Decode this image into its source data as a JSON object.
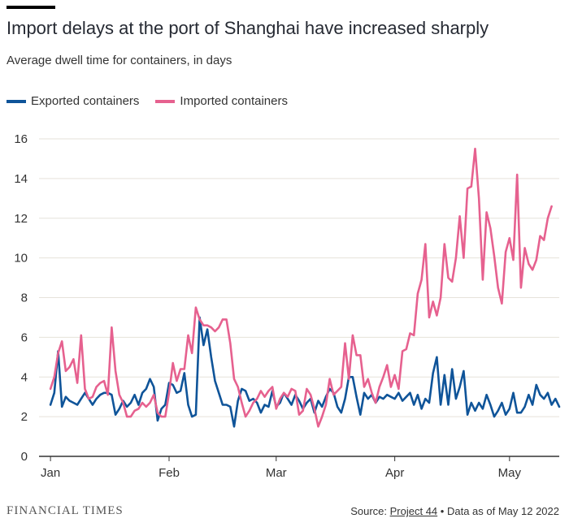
{
  "header": {
    "title": "Import delays at the port of Shanghai have increased sharply",
    "subtitle": "Average dwell time for containers, in days"
  },
  "footer": {
    "brand": "FINANCIAL TIMES",
    "source_prefix": "Source:",
    "source_link": "Project 44",
    "source_suffix": "• Data as of May 12 2022"
  },
  "colors": {
    "exported": "#0f5499",
    "imported": "#e6618f",
    "grid": "#e6e2da",
    "axis": "#333333"
  },
  "chart_data": {
    "type": "line",
    "title": "Import delays at the port of Shanghai have increased sharply",
    "subtitle": "Average dwell time for containers, in days",
    "xlabel": "",
    "ylabel": "",
    "x_ticks": [
      {
        "label": "Jan",
        "day": 0
      },
      {
        "label": "Feb",
        "day": 31
      },
      {
        "label": "Mar",
        "day": 59
      },
      {
        "label": "Apr",
        "day": 90
      },
      {
        "label": "May",
        "day": 120
      }
    ],
    "y_ticks": [
      0,
      2,
      4,
      6,
      8,
      10,
      12,
      14,
      16
    ],
    "ylim": [
      0,
      16
    ],
    "xlim_days": [
      -3,
      133
    ],
    "grid": true,
    "legend_position": "top-left",
    "series": [
      {
        "name": "Exported containers",
        "color": "#0f5499",
        "values": [
          [
            0,
            2.6
          ],
          [
            1,
            3.2
          ],
          [
            2,
            5.3
          ],
          [
            3,
            2.5
          ],
          [
            4,
            3.0
          ],
          [
            5,
            2.8
          ],
          [
            6,
            2.7
          ],
          [
            7,
            2.6
          ],
          [
            8,
            2.9
          ],
          [
            9,
            3.2
          ],
          [
            10,
            2.9
          ],
          [
            11,
            2.6
          ],
          [
            12,
            2.9
          ],
          [
            13,
            3.1
          ],
          [
            14,
            3.2
          ],
          [
            15,
            3.2
          ],
          [
            16,
            3.1
          ],
          [
            17,
            2.1
          ],
          [
            18,
            2.4
          ],
          [
            19,
            2.8
          ],
          [
            20,
            2.5
          ],
          [
            21,
            2.7
          ],
          [
            22,
            3.1
          ],
          [
            23,
            2.6
          ],
          [
            24,
            3.2
          ],
          [
            25,
            3.4
          ],
          [
            26,
            3.9
          ],
          [
            27,
            3.5
          ],
          [
            28,
            1.8
          ],
          [
            29,
            2.4
          ],
          [
            30,
            2.6
          ],
          [
            31,
            3.7
          ],
          [
            32,
            3.6
          ],
          [
            33,
            3.2
          ],
          [
            34,
            3.3
          ],
          [
            35,
            4.2
          ],
          [
            36,
            2.6
          ],
          [
            37,
            2.0
          ],
          [
            38,
            2.1
          ],
          [
            39,
            7.0
          ],
          [
            40,
            5.6
          ],
          [
            41,
            6.4
          ],
          [
            42,
            5.0
          ],
          [
            43,
            3.8
          ],
          [
            44,
            3.2
          ],
          [
            45,
            2.6
          ],
          [
            46,
            2.6
          ],
          [
            47,
            2.5
          ],
          [
            48,
            1.5
          ],
          [
            49,
            2.8
          ],
          [
            50,
            3.4
          ],
          [
            51,
            3.3
          ],
          [
            52,
            2.8
          ],
          [
            53,
            2.9
          ],
          [
            54,
            2.7
          ],
          [
            55,
            2.2
          ],
          [
            56,
            2.6
          ],
          [
            57,
            2.5
          ],
          [
            58,
            3.3
          ],
          [
            59,
            2.5
          ],
          [
            60,
            2.7
          ],
          [
            61,
            3.2
          ],
          [
            62,
            2.9
          ],
          [
            63,
            2.6
          ],
          [
            64,
            3.1
          ],
          [
            65,
            2.8
          ],
          [
            66,
            2.4
          ],
          [
            67,
            2.7
          ],
          [
            68,
            2.9
          ],
          [
            69,
            2.2
          ],
          [
            70,
            2.8
          ],
          [
            71,
            2.5
          ],
          [
            72,
            3.0
          ],
          [
            73,
            3.4
          ],
          [
            74,
            3.2
          ],
          [
            75,
            2.5
          ],
          [
            76,
            2.2
          ],
          [
            77,
            2.9
          ],
          [
            78,
            4.0
          ],
          [
            79,
            4.0
          ],
          [
            80,
            3.0
          ],
          [
            81,
            2.1
          ],
          [
            82,
            3.2
          ],
          [
            83,
            2.9
          ],
          [
            84,
            3.1
          ],
          [
            85,
            2.7
          ],
          [
            86,
            3.0
          ],
          [
            87,
            2.9
          ],
          [
            88,
            3.1
          ],
          [
            89,
            3.0
          ],
          [
            90,
            2.9
          ],
          [
            91,
            3.2
          ],
          [
            92,
            2.8
          ],
          [
            93,
            3.0
          ],
          [
            94,
            3.2
          ],
          [
            95,
            2.6
          ],
          [
            96,
            3.1
          ],
          [
            97,
            2.4
          ],
          [
            98,
            2.9
          ],
          [
            99,
            2.7
          ],
          [
            100,
            4.2
          ],
          [
            101,
            5.0
          ],
          [
            102,
            2.6
          ],
          [
            103,
            4.1
          ],
          [
            104,
            2.6
          ],
          [
            105,
            4.4
          ],
          [
            106,
            2.9
          ],
          [
            107,
            3.5
          ],
          [
            108,
            4.3
          ],
          [
            109,
            2.1
          ],
          [
            110,
            2.7
          ],
          [
            111,
            2.3
          ],
          [
            112,
            2.7
          ],
          [
            113,
            2.4
          ],
          [
            114,
            3.1
          ],
          [
            115,
            2.6
          ],
          [
            116,
            2.0
          ],
          [
            117,
            2.3
          ],
          [
            118,
            2.7
          ],
          [
            119,
            2.1
          ],
          [
            120,
            2.4
          ],
          [
            121,
            3.2
          ],
          [
            122,
            2.2
          ],
          [
            123,
            2.2
          ],
          [
            124,
            2.5
          ],
          [
            125,
            3.1
          ],
          [
            126,
            2.6
          ],
          [
            127,
            3.6
          ],
          [
            128,
            3.1
          ],
          [
            129,
            2.9
          ],
          [
            130,
            3.2
          ],
          [
            131,
            2.6
          ],
          [
            132,
            2.9
          ],
          [
            133,
            2.5
          ]
        ]
      },
      {
        "name": "Imported containers",
        "color": "#e6618f",
        "values": [
          [
            0,
            3.4
          ],
          [
            1,
            4.0
          ],
          [
            2,
            5.2
          ],
          [
            3,
            5.8
          ],
          [
            4,
            4.3
          ],
          [
            5,
            4.5
          ],
          [
            6,
            4.9
          ],
          [
            7,
            3.7
          ],
          [
            8,
            6.1
          ],
          [
            9,
            3.4
          ],
          [
            10,
            2.9
          ],
          [
            11,
            3.0
          ],
          [
            12,
            3.5
          ],
          [
            13,
            3.7
          ],
          [
            14,
            3.8
          ],
          [
            15,
            3.1
          ],
          [
            16,
            6.5
          ],
          [
            17,
            4.3
          ],
          [
            18,
            3.1
          ],
          [
            19,
            2.7
          ],
          [
            20,
            2.0
          ],
          [
            21,
            2.0
          ],
          [
            22,
            2.3
          ],
          [
            23,
            2.4
          ],
          [
            24,
            2.7
          ],
          [
            25,
            2.5
          ],
          [
            26,
            2.7
          ],
          [
            27,
            3.1
          ],
          [
            28,
            2.2
          ],
          [
            29,
            2.0
          ],
          [
            30,
            2.0
          ],
          [
            31,
            3.2
          ],
          [
            32,
            4.7
          ],
          [
            33,
            3.8
          ],
          [
            34,
            4.4
          ],
          [
            35,
            4.4
          ],
          [
            36,
            6.1
          ],
          [
            37,
            5.2
          ],
          [
            38,
            7.5
          ],
          [
            39,
            6.9
          ],
          [
            40,
            6.6
          ],
          [
            41,
            6.6
          ],
          [
            42,
            6.5
          ],
          [
            43,
            6.3
          ],
          [
            44,
            6.5
          ],
          [
            45,
            6.9
          ],
          [
            46,
            6.9
          ],
          [
            47,
            5.7
          ],
          [
            48,
            3.9
          ],
          [
            49,
            3.5
          ],
          [
            50,
            2.7
          ],
          [
            51,
            2.0
          ],
          [
            52,
            2.3
          ],
          [
            53,
            2.7
          ],
          [
            54,
            2.9
          ],
          [
            55,
            3.3
          ],
          [
            56,
            3.0
          ],
          [
            57,
            3.3
          ],
          [
            58,
            3.5
          ],
          [
            59,
            2.4
          ],
          [
            60,
            2.9
          ],
          [
            61,
            3.2
          ],
          [
            62,
            3.0
          ],
          [
            63,
            3.4
          ],
          [
            64,
            3.3
          ],
          [
            65,
            2.1
          ],
          [
            66,
            2.3
          ],
          [
            67,
            3.4
          ],
          [
            68,
            3.1
          ],
          [
            69,
            2.4
          ],
          [
            70,
            1.5
          ],
          [
            71,
            2.0
          ],
          [
            72,
            2.6
          ],
          [
            73,
            3.9
          ],
          [
            74,
            3.1
          ],
          [
            75,
            3.3
          ],
          [
            76,
            3.5
          ],
          [
            77,
            5.7
          ],
          [
            78,
            3.9
          ],
          [
            79,
            6.1
          ],
          [
            80,
            5.1
          ],
          [
            81,
            5.1
          ],
          [
            82,
            3.5
          ],
          [
            83,
            3.9
          ],
          [
            84,
            3.2
          ],
          [
            85,
            2.7
          ],
          [
            86,
            3.5
          ],
          [
            87,
            4.0
          ],
          [
            88,
            4.6
          ],
          [
            89,
            3.5
          ],
          [
            90,
            4.1
          ],
          [
            91,
            3.4
          ],
          [
            92,
            5.3
          ],
          [
            93,
            5.4
          ],
          [
            94,
            6.2
          ],
          [
            95,
            6.1
          ],
          [
            96,
            8.2
          ],
          [
            97,
            8.9
          ],
          [
            98,
            10.7
          ],
          [
            99,
            7.0
          ],
          [
            100,
            7.8
          ],
          [
            101,
            7.1
          ],
          [
            102,
            8.0
          ],
          [
            103,
            10.7
          ],
          [
            104,
            9.0
          ],
          [
            105,
            8.8
          ],
          [
            106,
            10.0
          ],
          [
            107,
            12.1
          ],
          [
            108,
            10.0
          ],
          [
            109,
            13.5
          ],
          [
            110,
            13.6
          ],
          [
            111,
            15.5
          ],
          [
            112,
            13.0
          ],
          [
            113,
            8.9
          ],
          [
            114,
            12.3
          ],
          [
            115,
            11.5
          ],
          [
            116,
            10.1
          ],
          [
            117,
            8.5
          ],
          [
            118,
            7.7
          ],
          [
            119,
            10.3
          ],
          [
            120,
            11.0
          ],
          [
            121,
            9.9
          ],
          [
            122,
            14.2
          ],
          [
            123,
            8.5
          ],
          [
            124,
            10.5
          ],
          [
            125,
            9.7
          ],
          [
            126,
            9.4
          ],
          [
            127,
            9.9
          ],
          [
            128,
            11.1
          ],
          [
            129,
            10.9
          ],
          [
            130,
            12.0
          ],
          [
            131,
            12.6
          ]
        ]
      }
    ]
  }
}
